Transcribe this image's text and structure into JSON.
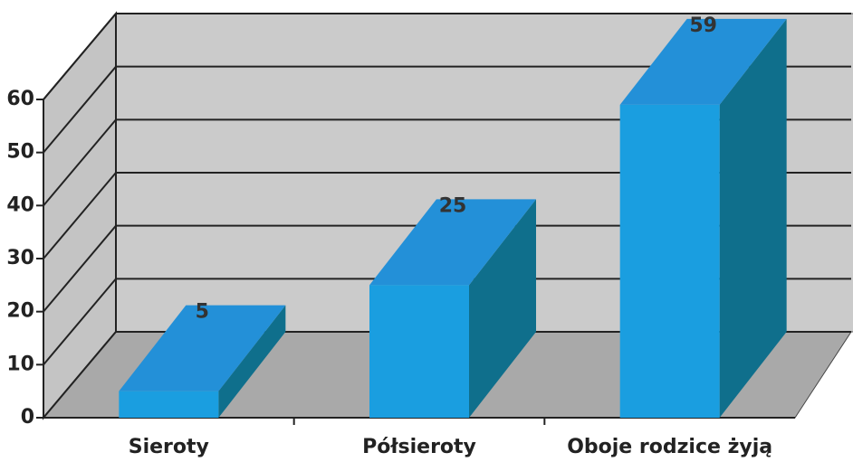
{
  "chart_data": {
    "type": "bar3d",
    "categories": [
      "Sieroty",
      "Półsieroty",
      "Oboje rodzice żyją"
    ],
    "values": [
      5,
      25,
      59
    ],
    "color": "#1a9ee0",
    "ylim": [
      0,
      60
    ],
    "yticks": [
      0,
      10,
      20,
      30,
      40,
      50,
      60
    ],
    "grid": true
  }
}
